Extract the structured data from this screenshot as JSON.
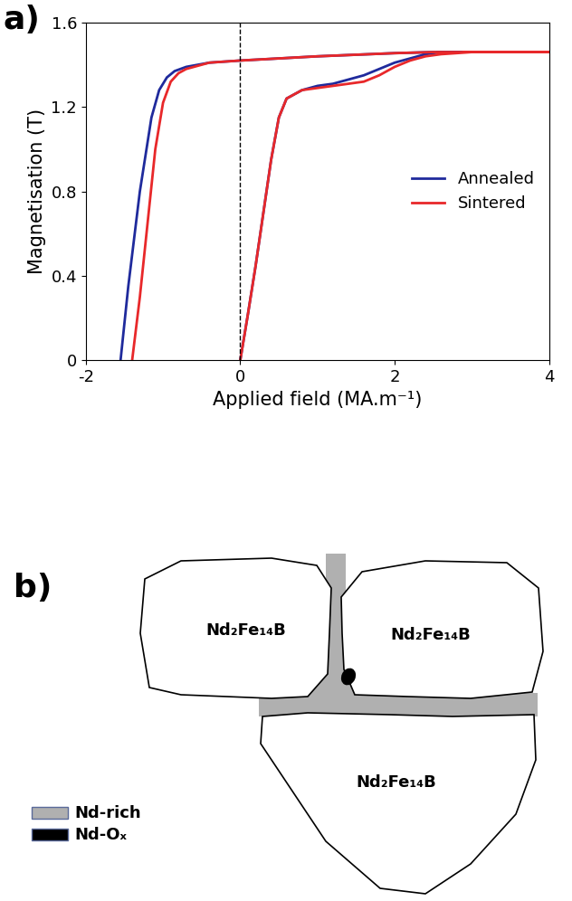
{
  "panel_labels": [
    "a)",
    "b)"
  ],
  "chart_data": {
    "type": "line",
    "x_label": "Applied field (MA.m⁻¹)",
    "y_label": "Magnetisation (T)",
    "xlim": [
      -2,
      4
    ],
    "xticks": [
      -2,
      0,
      2,
      4
    ],
    "ylim": [
      0,
      1.6
    ],
    "yticks": [
      0,
      0.4,
      0.8,
      1.2,
      1.6
    ],
    "reference_line_x": 0,
    "legend": "center right",
    "series": [
      {
        "name": "Annealed",
        "color": "#1f2a9c",
        "line_style": "solid",
        "x": [
          -1.55,
          -1.45,
          -1.3,
          -1.15,
          -1.05,
          -0.95,
          -0.85,
          -0.7,
          -0.4,
          0,
          0.5,
          1,
          2,
          2.5,
          3,
          4,
          null,
          0,
          0.1,
          0.2,
          0.3,
          0.4,
          0.5,
          0.6,
          0.8,
          1.0,
          1.2,
          1.4,
          1.6,
          1.8,
          2.0,
          2.2,
          2.4,
          2.6,
          3,
          4
        ],
        "values": [
          0,
          0.35,
          0.8,
          1.15,
          1.28,
          1.34,
          1.37,
          1.39,
          1.41,
          1.42,
          1.43,
          1.44,
          1.455,
          1.46,
          1.46,
          1.46,
          null,
          0,
          0.22,
          0.45,
          0.7,
          0.95,
          1.15,
          1.24,
          1.28,
          1.3,
          1.31,
          1.33,
          1.35,
          1.38,
          1.41,
          1.43,
          1.45,
          1.46,
          1.46,
          1.46
        ]
      },
      {
        "name": "Sintered",
        "color": "#e8282a",
        "line_style": "solid",
        "x": [
          -1.4,
          -1.3,
          -1.2,
          -1.1,
          -1.0,
          -0.9,
          -0.8,
          -0.7,
          -0.4,
          0,
          0.5,
          1,
          2,
          2.5,
          3,
          4,
          null,
          0,
          0.1,
          0.2,
          0.3,
          0.4,
          0.5,
          0.6,
          0.8,
          1.0,
          1.2,
          1.4,
          1.6,
          1.8,
          2.0,
          2.2,
          2.4,
          2.6,
          3,
          4
        ],
        "values": [
          0,
          0.3,
          0.65,
          1.0,
          1.22,
          1.32,
          1.36,
          1.38,
          1.41,
          1.42,
          1.43,
          1.44,
          1.455,
          1.46,
          1.46,
          1.46,
          null,
          0,
          0.22,
          0.45,
          0.7,
          0.95,
          1.15,
          1.24,
          1.28,
          1.29,
          1.3,
          1.31,
          1.32,
          1.35,
          1.39,
          1.42,
          1.44,
          1.45,
          1.46,
          1.46
        ]
      }
    ]
  },
  "diagram": {
    "grains": [
      "Nd₂Fe₁₄B",
      "Nd₂Fe₁₄B",
      "Nd₂Fe₁₄B"
    ],
    "legend": [
      {
        "label": "Nd-rich",
        "color": "#b0b0b0"
      },
      {
        "label": "Nd-Oₓ",
        "color": "#000000"
      }
    ]
  }
}
